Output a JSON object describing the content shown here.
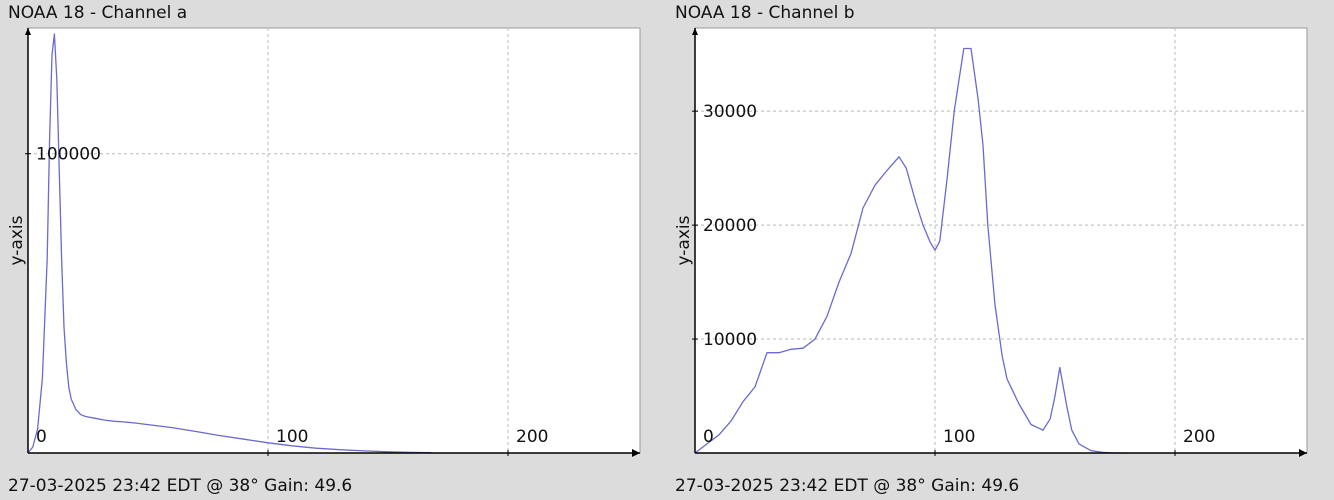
{
  "panels": [
    {
      "title": "NOAA 18 - Channel a",
      "footer": "27-03-2025 23:42 EDT @ 38° Gain: 49.6"
    },
    {
      "title": "NOAA 18 - Channel b",
      "footer": "27-03-2025 23:42 EDT @ 38° Gain: 49.6"
    }
  ],
  "colors": {
    "background": "#dcdcdc",
    "plot_area": "#ffffff",
    "line": "#6a6ad0",
    "grid": "#b8b8b8",
    "axis": "#000000"
  },
  "chart_data": [
    {
      "type": "line",
      "title": "NOAA 18 - Channel a",
      "xlabel": "",
      "ylabel": "y-axis",
      "xlim": [
        0,
        255
      ],
      "ylim": [
        0,
        142000
      ],
      "xticks": [
        0,
        100,
        200
      ],
      "yticks": [
        100000
      ],
      "grid": true,
      "legend": "none",
      "series": [
        {
          "x": [
            0,
            2,
            4,
            6,
            8,
            9,
            10,
            11,
            12,
            13,
            14,
            15,
            16,
            17,
            18,
            20,
            22,
            24,
            28,
            32,
            36,
            40,
            45,
            50,
            60,
            70,
            80,
            90,
            100,
            110,
            120,
            130,
            140,
            150,
            160,
            168
          ],
          "y": [
            0,
            2000,
            8000,
            25000,
            65000,
            105000,
            133000,
            140000,
            125000,
            95000,
            65000,
            42000,
            30000,
            22000,
            18000,
            14500,
            12800,
            12200,
            11600,
            11000,
            10600,
            10400,
            10000,
            9500,
            8500,
            7200,
            5800,
            4600,
            3400,
            2400,
            1600,
            1100,
            700,
            400,
            200,
            100
          ]
        }
      ]
    },
    {
      "type": "line",
      "title": "NOAA 18 - Channel b",
      "xlabel": "",
      "ylabel": "y-axis",
      "xlim": [
        0,
        255
      ],
      "ylim": [
        0,
        37300
      ],
      "xticks": [
        0,
        100,
        200
      ],
      "yticks": [
        10000,
        20000,
        30000
      ],
      "grid": true,
      "legend": "none",
      "series": [
        {
          "x": [
            0,
            5,
            10,
            15,
            20,
            25,
            30,
            35,
            40,
            45,
            50,
            55,
            60,
            65,
            70,
            75,
            80,
            85,
            88,
            92,
            95,
            98,
            100,
            102,
            105,
            108,
            112,
            115,
            118,
            120,
            122,
            125,
            128,
            130,
            135,
            140,
            145,
            148,
            150,
            152,
            155,
            157,
            160,
            165,
            170,
            175,
            180
          ],
          "y": [
            0,
            800,
            1600,
            2800,
            4500,
            5800,
            8800,
            8800,
            9100,
            9200,
            10000,
            12000,
            15000,
            17500,
            21500,
            23500,
            24800,
            26000,
            25000,
            22000,
            20000,
            18500,
            17800,
            18600,
            24000,
            30000,
            35500,
            35500,
            31000,
            27000,
            20000,
            13000,
            8500,
            6500,
            4300,
            2500,
            2000,
            3000,
            5000,
            7500,
            4000,
            2000,
            800,
            200,
            50,
            0,
            0
          ]
        }
      ]
    }
  ]
}
